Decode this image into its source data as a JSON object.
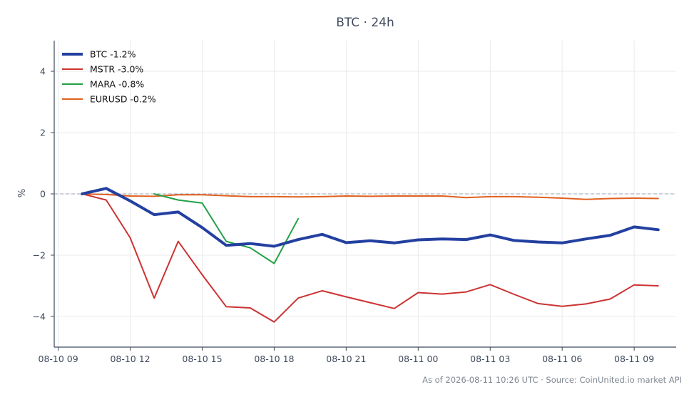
{
  "chart_data": {
    "type": "line",
    "title": "BTC · 24h",
    "xlabel": "",
    "ylabel": "%",
    "ylim": [
      -5,
      5
    ],
    "xlim": [
      "2026-08-10 08:50",
      "2026-08-11 10:45"
    ],
    "x_ticks": [
      "08-10 09",
      "08-10 12",
      "08-10 15",
      "08-10 18",
      "08-10 21",
      "08-11 00",
      "08-11 03",
      "08-11 06",
      "08-11 09"
    ],
    "y_ticks": [
      -4,
      -2,
      0,
      2,
      4
    ],
    "grid": true,
    "zero_line": true,
    "legend_placement": "top-left",
    "series": [
      {
        "name": "BTC -1.2%",
        "color": "#2340a0",
        "x": [
          "2026-08-10 10:00",
          "2026-08-10 11:00",
          "2026-08-10 12:00",
          "2026-08-10 13:00",
          "2026-08-10 14:00",
          "2026-08-10 15:00",
          "2026-08-10 16:00",
          "2026-08-10 17:00",
          "2026-08-10 18:00",
          "2026-08-10 19:00",
          "2026-08-10 20:00",
          "2026-08-10 21:00",
          "2026-08-10 22:00",
          "2026-08-10 23:00",
          "2026-08-11 00:00",
          "2026-08-11 01:00",
          "2026-08-11 02:00",
          "2026-08-11 03:00",
          "2026-08-11 04:00",
          "2026-08-11 05:00",
          "2026-08-11 06:00",
          "2026-08-11 07:00",
          "2026-08-11 08:00",
          "2026-08-11 09:00",
          "2026-08-11 10:00"
        ],
        "values": [
          0.0,
          0.18,
          -0.23,
          -0.68,
          -0.59,
          -1.1,
          -1.68,
          -1.62,
          -1.71,
          -1.49,
          -1.32,
          -1.59,
          -1.53,
          -1.6,
          -1.5,
          -1.47,
          -1.49,
          -1.34,
          -1.52,
          -1.57,
          -1.6,
          -1.47,
          -1.35,
          -1.08,
          -1.17
        ]
      },
      {
        "name": "MSTR -3.0%",
        "color": "#cc3333",
        "x": [
          "2026-08-10 10:00",
          "2026-08-10 11:00",
          "2026-08-10 12:00",
          "2026-08-10 13:00",
          "2026-08-10 14:00",
          "2026-08-10 15:00",
          "2026-08-10 16:00",
          "2026-08-10 17:00",
          "2026-08-10 18:00",
          "2026-08-10 19:00",
          "2026-08-10 20:00",
          "2026-08-10 21:00",
          "2026-08-10 22:00",
          "2026-08-10 23:00",
          "2026-08-11 00:00",
          "2026-08-11 01:00",
          "2026-08-11 02:00",
          "2026-08-11 03:00",
          "2026-08-11 04:00",
          "2026-08-11 05:00",
          "2026-08-11 06:00",
          "2026-08-11 07:00",
          "2026-08-11 08:00",
          "2026-08-11 09:00",
          "2026-08-11 10:00"
        ],
        "values": [
          0.0,
          -0.2,
          -1.43,
          -3.4,
          -1.55,
          -2.64,
          -3.68,
          -3.72,
          -4.18,
          -3.4,
          -3.16,
          -3.36,
          -3.55,
          -3.74,
          -3.22,
          -3.27,
          -3.2,
          -2.96,
          -3.28,
          -3.58,
          -3.67,
          -3.59,
          -3.43,
          -2.97,
          -3.0
        ]
      },
      {
        "name": "MARA -0.8%",
        "color": "#22a045",
        "x": [
          "2026-08-10 13:00",
          "2026-08-10 14:00",
          "2026-08-10 15:00",
          "2026-08-10 16:00",
          "2026-08-10 17:00",
          "2026-08-10 18:00",
          "2026-08-10 19:00"
        ],
        "values": [
          0.0,
          -0.2,
          -0.3,
          -1.55,
          -1.76,
          -2.27,
          -0.81
        ]
      },
      {
        "name": "EURUSD -0.2%",
        "color": "#e0601e",
        "x": [
          "2026-08-10 10:00",
          "2026-08-10 11:00",
          "2026-08-10 12:00",
          "2026-08-10 13:00",
          "2026-08-10 14:00",
          "2026-08-10 15:00",
          "2026-08-10 16:00",
          "2026-08-10 17:00",
          "2026-08-10 18:00",
          "2026-08-10 19:00",
          "2026-08-10 20:00",
          "2026-08-10 21:00",
          "2026-08-10 22:00",
          "2026-08-10 23:00",
          "2026-08-11 00:00",
          "2026-08-11 01:00",
          "2026-08-11 02:00",
          "2026-08-11 03:00",
          "2026-08-11 04:00",
          "2026-08-11 05:00",
          "2026-08-11 06:00",
          "2026-08-11 07:00",
          "2026-08-11 08:00",
          "2026-08-11 09:00",
          "2026-08-11 10:00"
        ],
        "values": [
          0.0,
          -0.02,
          -0.07,
          -0.08,
          -0.03,
          -0.03,
          -0.06,
          -0.09,
          -0.09,
          -0.1,
          -0.09,
          -0.07,
          -0.08,
          -0.07,
          -0.07,
          -0.07,
          -0.12,
          -0.09,
          -0.09,
          -0.11,
          -0.14,
          -0.18,
          -0.15,
          -0.14,
          -0.15
        ]
      }
    ]
  },
  "footer": "As of 2026-08-11 10:26 UTC · Source: CoinUnited.io market API"
}
